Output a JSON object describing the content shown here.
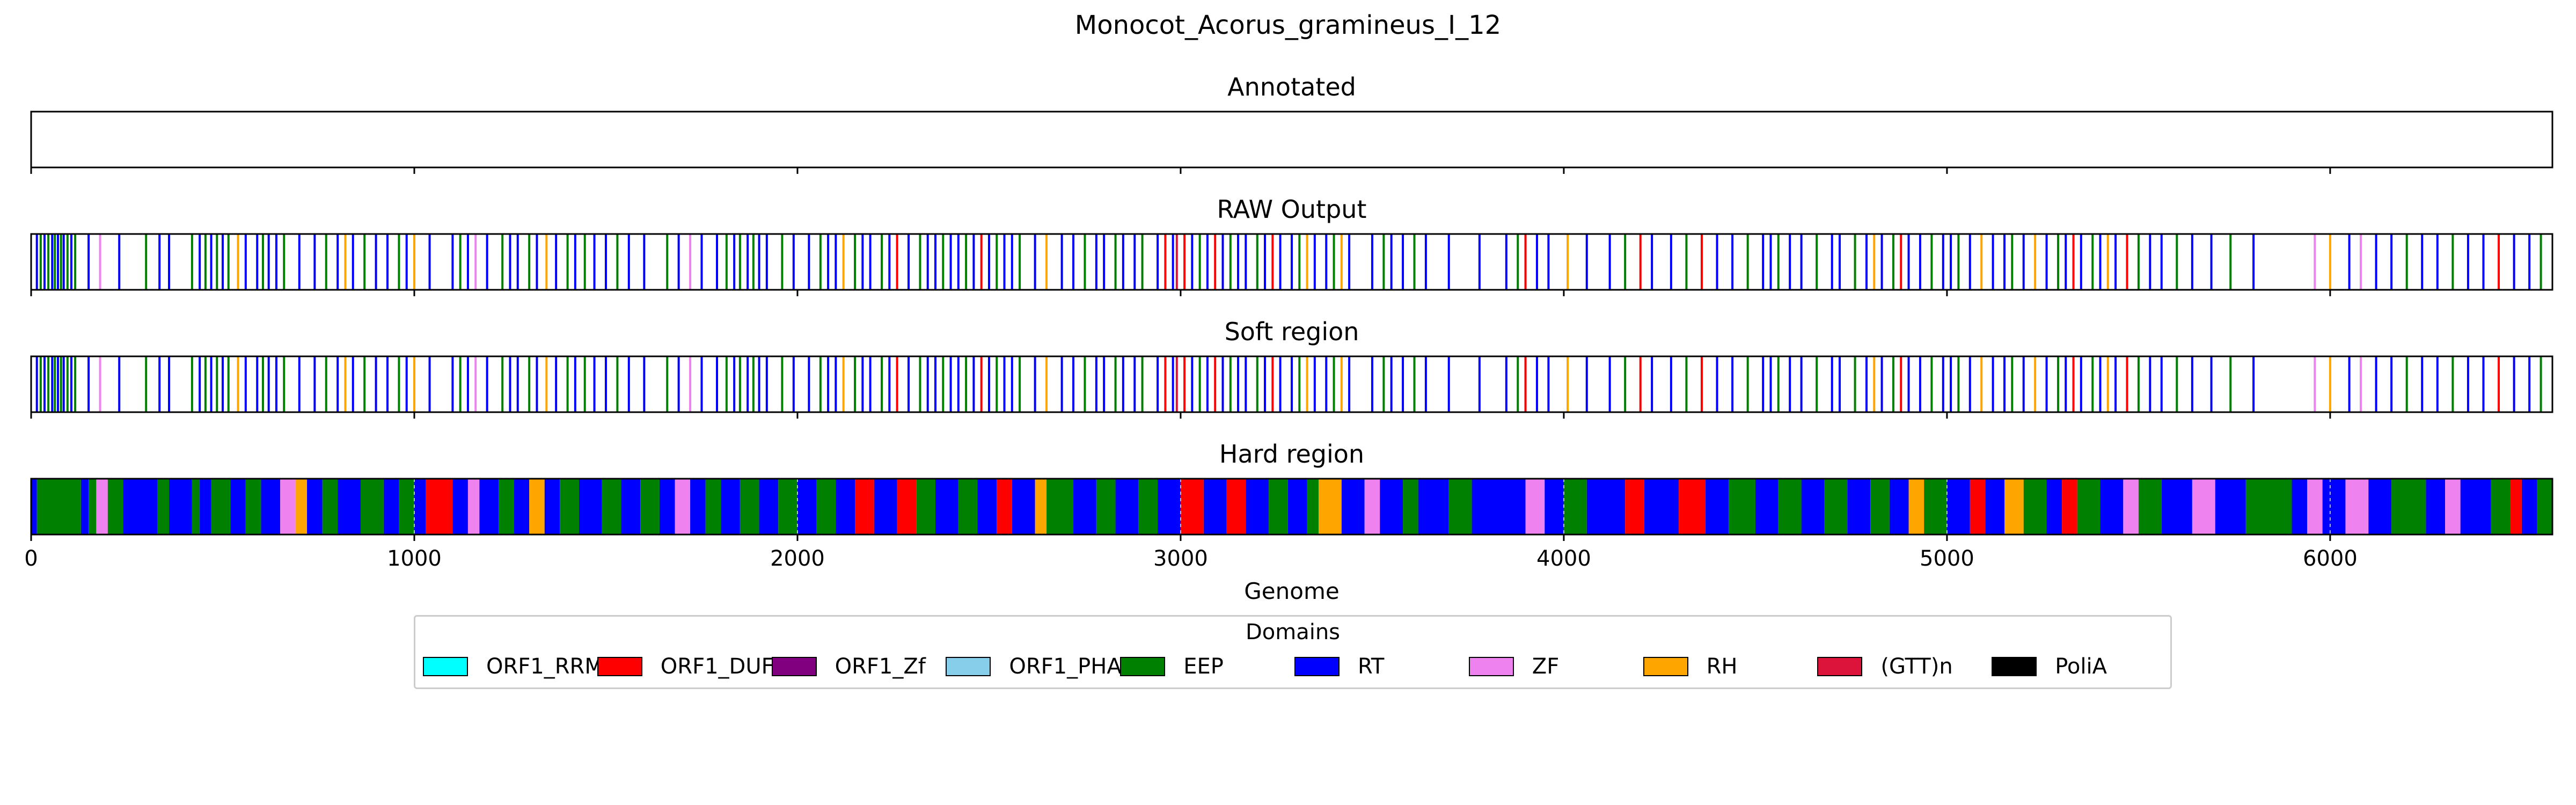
{
  "chart_data": {
    "type": "track",
    "title": "Monocot_Acorus_gramineus_I_12",
    "xlabel": "Genome",
    "xlim": [
      0,
      6580
    ],
    "xticks": [
      0,
      1000,
      2000,
      3000,
      4000,
      5000,
      6000
    ],
    "xtick_labels": [
      "0",
      "1000",
      "2000",
      "3000",
      "4000",
      "5000",
      "6000"
    ],
    "grid": false,
    "legend": {
      "title": "Domains",
      "placement": "lower-center",
      "entries": [
        {
          "label": "ORF1_RRM",
          "color": "#00ffff"
        },
        {
          "label": "ORF1_DUF",
          "color": "#ff0000"
        },
        {
          "label": "ORF1_Zf",
          "color": "#800080"
        },
        {
          "label": "ORF1_PHA",
          "color": "#87ceeb"
        },
        {
          "label": "EEP",
          "color": "#008000"
        },
        {
          "label": "RT",
          "color": "#0000ff"
        },
        {
          "label": "ZF",
          "color": "#ee82ee"
        },
        {
          "label": "RH",
          "color": "#ffa500"
        },
        {
          "label": "(GTT)n",
          "color": "#dc143c"
        },
        {
          "label": "PoliA",
          "color": "#000000"
        }
      ]
    },
    "panels": [
      {
        "title": "Annotated",
        "kind": "empty"
      },
      {
        "title": "RAW Output",
        "kind": "lines"
      },
      {
        "title": "Soft region",
        "kind": "lines"
      },
      {
        "title": "Hard region",
        "kind": "blocks"
      }
    ],
    "lines": [
      [
        15,
        "RT"
      ],
      [
        25,
        "EEP"
      ],
      [
        35,
        "RT"
      ],
      [
        45,
        "EEP"
      ],
      [
        55,
        "RT"
      ],
      [
        62,
        "EEP"
      ],
      [
        70,
        "RT"
      ],
      [
        78,
        "EEP"
      ],
      [
        85,
        "RT"
      ],
      [
        95,
        "EEP"
      ],
      [
        105,
        "RT"
      ],
      [
        115,
        "EEP"
      ],
      [
        150,
        "RT"
      ],
      [
        180,
        "ZF"
      ],
      [
        230,
        "RT"
      ],
      [
        300,
        "EEP"
      ],
      [
        335,
        "RT"
      ],
      [
        360,
        "RT"
      ],
      [
        420,
        "EEP"
      ],
      [
        440,
        "RT"
      ],
      [
        455,
        "EEP"
      ],
      [
        470,
        "RT"
      ],
      [
        485,
        "EEP"
      ],
      [
        500,
        "RT"
      ],
      [
        515,
        "EEP"
      ],
      [
        540,
        "RH"
      ],
      [
        560,
        "RT"
      ],
      [
        590,
        "RT"
      ],
      [
        605,
        "EEP"
      ],
      [
        620,
        "RT"
      ],
      [
        640,
        "RT"
      ],
      [
        660,
        "EEP"
      ],
      [
        700,
        "RT"
      ],
      [
        740,
        "RT"
      ],
      [
        770,
        "EEP"
      ],
      [
        800,
        "RT"
      ],
      [
        820,
        "RH"
      ],
      [
        840,
        "RT"
      ],
      [
        870,
        "EEP"
      ],
      [
        900,
        "RT"
      ],
      [
        930,
        "RT"
      ],
      [
        960,
        "EEP"
      ],
      [
        980,
        "RT"
      ],
      [
        1000,
        "RH"
      ],
      [
        1040,
        "RT"
      ],
      [
        1100,
        "RT"
      ],
      [
        1120,
        "EEP"
      ],
      [
        1140,
        "RT"
      ],
      [
        1160,
        "ZF"
      ],
      [
        1190,
        "RT"
      ],
      [
        1230,
        "EEP"
      ],
      [
        1250,
        "RT"
      ],
      [
        1270,
        "RT"
      ],
      [
        1300,
        "EEP"
      ],
      [
        1320,
        "RT"
      ],
      [
        1345,
        "RH"
      ],
      [
        1370,
        "RT"
      ],
      [
        1400,
        "EEP"
      ],
      [
        1420,
        "RT"
      ],
      [
        1445,
        "EEP"
      ],
      [
        1470,
        "RT"
      ],
      [
        1500,
        "RT"
      ],
      [
        1530,
        "EEP"
      ],
      [
        1560,
        "RT"
      ],
      [
        1600,
        "RT"
      ],
      [
        1660,
        "EEP"
      ],
      [
        1690,
        "RT"
      ],
      [
        1720,
        "ZF"
      ],
      [
        1750,
        "RT"
      ],
      [
        1790,
        "RT"
      ],
      [
        1815,
        "EEP"
      ],
      [
        1835,
        "RT"
      ],
      [
        1850,
        "EEP"
      ],
      [
        1870,
        "RT"
      ],
      [
        1885,
        "EEP"
      ],
      [
        1900,
        "RT"
      ],
      [
        1920,
        "RT"
      ],
      [
        1960,
        "EEP"
      ],
      [
        1990,
        "RT"
      ],
      [
        2030,
        "RT"
      ],
      [
        2060,
        "EEP"
      ],
      [
        2080,
        "RT"
      ],
      [
        2100,
        "RT"
      ],
      [
        2120,
        "RH"
      ],
      [
        2150,
        "EEP"
      ],
      [
        2170,
        "RT"
      ],
      [
        2190,
        "RT"
      ],
      [
        2220,
        "EEP"
      ],
      [
        2240,
        "RT"
      ],
      [
        2260,
        "ORF1_DUF"
      ],
      [
        2290,
        "RT"
      ],
      [
        2320,
        "EEP"
      ],
      [
        2340,
        "RT"
      ],
      [
        2360,
        "RT"
      ],
      [
        2380,
        "EEP"
      ],
      [
        2400,
        "RT"
      ],
      [
        2420,
        "RT"
      ],
      [
        2440,
        "EEP"
      ],
      [
        2460,
        "RT"
      ],
      [
        2480,
        "ORF1_DUF"
      ],
      [
        2500,
        "RT"
      ],
      [
        2520,
        "EEP"
      ],
      [
        2540,
        "RT"
      ],
      [
        2560,
        "RT"
      ],
      [
        2580,
        "EEP"
      ],
      [
        2620,
        "RT"
      ],
      [
        2650,
        "RH"
      ],
      [
        2690,
        "RT"
      ],
      [
        2720,
        "RT"
      ],
      [
        2750,
        "EEP"
      ],
      [
        2780,
        "RT"
      ],
      [
        2800,
        "RT"
      ],
      [
        2830,
        "EEP"
      ],
      [
        2850,
        "RT"
      ],
      [
        2880,
        "RT"
      ],
      [
        2900,
        "EEP"
      ],
      [
        2940,
        "RT"
      ],
      [
        2960,
        "ORF1_DUF"
      ],
      [
        2980,
        "RT"
      ],
      [
        2990,
        "(GTT)n"
      ],
      [
        3010,
        "ORF1_DUF"
      ],
      [
        3030,
        "RT"
      ],
      [
        3050,
        "EEP"
      ],
      [
        3070,
        "RT"
      ],
      [
        3090,
        "ORF1_DUF"
      ],
      [
        3110,
        "RT"
      ],
      [
        3130,
        "EEP"
      ],
      [
        3150,
        "RT"
      ],
      [
        3170,
        "RT"
      ],
      [
        3200,
        "EEP"
      ],
      [
        3220,
        "RT"
      ],
      [
        3240,
        "ORF1_DUF"
      ],
      [
        3260,
        "RT"
      ],
      [
        3290,
        "RT"
      ],
      [
        3310,
        "EEP"
      ],
      [
        3330,
        "RH"
      ],
      [
        3350,
        "RT"
      ],
      [
        3380,
        "RT"
      ],
      [
        3400,
        "EEP"
      ],
      [
        3420,
        "RH"
      ],
      [
        3440,
        "RT"
      ],
      [
        3500,
        "RT"
      ],
      [
        3530,
        "EEP"
      ],
      [
        3550,
        "RT"
      ],
      [
        3580,
        "RT"
      ],
      [
        3610,
        "EEP"
      ],
      [
        3640,
        "RT"
      ],
      [
        3700,
        "RT"
      ],
      [
        3780,
        "RT"
      ],
      [
        3850,
        "RT"
      ],
      [
        3880,
        "EEP"
      ],
      [
        3900,
        "ORF1_DUF"
      ],
      [
        3930,
        "RT"
      ],
      [
        3960,
        "RT"
      ],
      [
        4010,
        "RH"
      ],
      [
        4060,
        "RT"
      ],
      [
        4120,
        "RT"
      ],
      [
        4160,
        "EEP"
      ],
      [
        4200,
        "ORF1_DUF"
      ],
      [
        4230,
        "RT"
      ],
      [
        4280,
        "RT"
      ],
      [
        4320,
        "EEP"
      ],
      [
        4360,
        "ORF1_DUF"
      ],
      [
        4400,
        "RT"
      ],
      [
        4440,
        "RT"
      ],
      [
        4480,
        "EEP"
      ],
      [
        4520,
        "RT"
      ],
      [
        4540,
        "RT"
      ],
      [
        4560,
        "EEP"
      ],
      [
        4590,
        "RT"
      ],
      [
        4620,
        "RT"
      ],
      [
        4660,
        "EEP"
      ],
      [
        4700,
        "RT"
      ],
      [
        4720,
        "RT"
      ],
      [
        4760,
        "EEP"
      ],
      [
        4790,
        "RT"
      ],
      [
        4810,
        "RH"
      ],
      [
        4830,
        "RT"
      ],
      [
        4860,
        "EEP"
      ],
      [
        4880,
        "ORF1_DUF"
      ],
      [
        4900,
        "RT"
      ],
      [
        4930,
        "RT"
      ],
      [
        4960,
        "EEP"
      ],
      [
        4990,
        "RT"
      ],
      [
        5010,
        "RT"
      ],
      [
        5030,
        "EEP"
      ],
      [
        5060,
        "RT"
      ],
      [
        5090,
        "RH"
      ],
      [
        5120,
        "RT"
      ],
      [
        5150,
        "RT"
      ],
      [
        5170,
        "EEP"
      ],
      [
        5200,
        "RT"
      ],
      [
        5230,
        "RH"
      ],
      [
        5260,
        "RT"
      ],
      [
        5290,
        "EEP"
      ],
      [
        5310,
        "RT"
      ],
      [
        5330,
        "ORF1_DUF"
      ],
      [
        5350,
        "RT"
      ],
      [
        5380,
        "EEP"
      ],
      [
        5400,
        "RT"
      ],
      [
        5420,
        "RH"
      ],
      [
        5440,
        "RT"
      ],
      [
        5470,
        "ORF1_DUF"
      ],
      [
        5500,
        "EEP"
      ],
      [
        5530,
        "RT"
      ],
      [
        5560,
        "RT"
      ],
      [
        5600,
        "EEP"
      ],
      [
        5640,
        "RT"
      ],
      [
        5690,
        "RT"
      ],
      [
        5740,
        "EEP"
      ],
      [
        5800,
        "RT"
      ],
      [
        5960,
        "ZF"
      ],
      [
        6000,
        "RH"
      ],
      [
        6050,
        "RT"
      ],
      [
        6080,
        "ZF"
      ],
      [
        6120,
        "RT"
      ],
      [
        6160,
        "RT"
      ],
      [
        6200,
        "EEP"
      ],
      [
        6240,
        "RT"
      ],
      [
        6280,
        "RT"
      ],
      [
        6320,
        "EEP"
      ],
      [
        6360,
        "RT"
      ],
      [
        6400,
        "RT"
      ],
      [
        6440,
        "ORF1_DUF"
      ],
      [
        6480,
        "RT"
      ],
      [
        6520,
        "RT"
      ],
      [
        6550,
        "EEP"
      ]
    ],
    "blocks": [
      [
        0,
        15,
        "RT"
      ],
      [
        15,
        130,
        "EEP"
      ],
      [
        130,
        150,
        "RT"
      ],
      [
        150,
        170,
        "EEP"
      ],
      [
        170,
        200,
        "ZF"
      ],
      [
        200,
        240,
        "EEP"
      ],
      [
        240,
        330,
        "RT"
      ],
      [
        330,
        360,
        "EEP"
      ],
      [
        360,
        420,
        "RT"
      ],
      [
        420,
        440,
        "EEP"
      ],
      [
        440,
        470,
        "RT"
      ],
      [
        470,
        520,
        "EEP"
      ],
      [
        520,
        560,
        "RT"
      ],
      [
        560,
        600,
        "EEP"
      ],
      [
        600,
        650,
        "RT"
      ],
      [
        650,
        690,
        "ZF"
      ],
      [
        690,
        720,
        "RH"
      ],
      [
        720,
        760,
        "RT"
      ],
      [
        760,
        800,
        "EEP"
      ],
      [
        800,
        860,
        "RT"
      ],
      [
        860,
        920,
        "EEP"
      ],
      [
        920,
        960,
        "RT"
      ],
      [
        960,
        1000,
        "EEP"
      ],
      [
        1000,
        1030,
        "RT"
      ],
      [
        1030,
        1100,
        "ORF1_DUF"
      ],
      [
        1100,
        1140,
        "RT"
      ],
      [
        1140,
        1170,
        "ZF"
      ],
      [
        1170,
        1220,
        "RT"
      ],
      [
        1220,
        1260,
        "EEP"
      ],
      [
        1260,
        1300,
        "RT"
      ],
      [
        1300,
        1340,
        "RH"
      ],
      [
        1340,
        1380,
        "RT"
      ],
      [
        1380,
        1430,
        "EEP"
      ],
      [
        1430,
        1490,
        "RT"
      ],
      [
        1490,
        1540,
        "EEP"
      ],
      [
        1540,
        1590,
        "RT"
      ],
      [
        1590,
        1640,
        "EEP"
      ],
      [
        1640,
        1680,
        "RT"
      ],
      [
        1680,
        1720,
        "ZF"
      ],
      [
        1720,
        1760,
        "RT"
      ],
      [
        1760,
        1800,
        "EEP"
      ],
      [
        1800,
        1850,
        "RT"
      ],
      [
        1850,
        1900,
        "EEP"
      ],
      [
        1900,
        1950,
        "RT"
      ],
      [
        1950,
        2000,
        "EEP"
      ],
      [
        2000,
        2050,
        "RT"
      ],
      [
        2050,
        2100,
        "EEP"
      ],
      [
        2100,
        2150,
        "RT"
      ],
      [
        2150,
        2200,
        "ORF1_DUF"
      ],
      [
        2200,
        2260,
        "RT"
      ],
      [
        2260,
        2310,
        "ORF1_DUF"
      ],
      [
        2310,
        2360,
        "EEP"
      ],
      [
        2360,
        2420,
        "RT"
      ],
      [
        2420,
        2470,
        "EEP"
      ],
      [
        2470,
        2520,
        "RT"
      ],
      [
        2520,
        2560,
        "ORF1_DUF"
      ],
      [
        2560,
        2620,
        "RT"
      ],
      [
        2620,
        2650,
        "RH"
      ],
      [
        2650,
        2720,
        "EEP"
      ],
      [
        2720,
        2780,
        "RT"
      ],
      [
        2780,
        2830,
        "EEP"
      ],
      [
        2830,
        2890,
        "RT"
      ],
      [
        2890,
        2940,
        "EEP"
      ],
      [
        2940,
        3000,
        "RT"
      ],
      [
        3000,
        3060,
        "ORF1_DUF"
      ],
      [
        3060,
        3120,
        "RT"
      ],
      [
        3120,
        3170,
        "ORF1_DUF"
      ],
      [
        3170,
        3230,
        "RT"
      ],
      [
        3230,
        3280,
        "EEP"
      ],
      [
        3280,
        3330,
        "RT"
      ],
      [
        3330,
        3360,
        "EEP"
      ],
      [
        3360,
        3420,
        "RH"
      ],
      [
        3420,
        3480,
        "RT"
      ],
      [
        3480,
        3520,
        "ZF"
      ],
      [
        3520,
        3580,
        "RT"
      ],
      [
        3580,
        3620,
        "EEP"
      ],
      [
        3620,
        3700,
        "RT"
      ],
      [
        3700,
        3760,
        "EEP"
      ],
      [
        3760,
        3900,
        "RT"
      ],
      [
        3900,
        3950,
        "ZF"
      ],
      [
        3950,
        4000,
        "RT"
      ],
      [
        4000,
        4060,
        "EEP"
      ],
      [
        4060,
        4160,
        "RT"
      ],
      [
        4160,
        4210,
        "ORF1_DUF"
      ],
      [
        4210,
        4300,
        "RT"
      ],
      [
        4300,
        4370,
        "ORF1_DUF"
      ],
      [
        4370,
        4430,
        "RT"
      ],
      [
        4430,
        4500,
        "EEP"
      ],
      [
        4500,
        4560,
        "RT"
      ],
      [
        4560,
        4620,
        "EEP"
      ],
      [
        4620,
        4680,
        "RT"
      ],
      [
        4680,
        4740,
        "EEP"
      ],
      [
        4740,
        4800,
        "RT"
      ],
      [
        4800,
        4850,
        "EEP"
      ],
      [
        4850,
        4900,
        "RT"
      ],
      [
        4900,
        4940,
        "RH"
      ],
      [
        4940,
        5000,
        "EEP"
      ],
      [
        5000,
        5060,
        "RT"
      ],
      [
        5060,
        5100,
        "ORF1_DUF"
      ],
      [
        5100,
        5150,
        "RT"
      ],
      [
        5150,
        5200,
        "RH"
      ],
      [
        5200,
        5260,
        "EEP"
      ],
      [
        5260,
        5300,
        "RT"
      ],
      [
        5300,
        5340,
        "ORF1_DUF"
      ],
      [
        5340,
        5400,
        "EEP"
      ],
      [
        5400,
        5460,
        "RT"
      ],
      [
        5460,
        5500,
        "ZF"
      ],
      [
        5500,
        5560,
        "EEP"
      ],
      [
        5560,
        5640,
        "RT"
      ],
      [
        5640,
        5700,
        "ZF"
      ],
      [
        5700,
        5780,
        "RT"
      ],
      [
        5780,
        5900,
        "EEP"
      ],
      [
        5900,
        5940,
        "RT"
      ],
      [
        5940,
        5980,
        "ZF"
      ],
      [
        5980,
        6040,
        "RT"
      ],
      [
        6040,
        6100,
        "ZF"
      ],
      [
        6100,
        6160,
        "RT"
      ],
      [
        6160,
        6250,
        "EEP"
      ],
      [
        6250,
        6300,
        "RT"
      ],
      [
        6300,
        6340,
        "ZF"
      ],
      [
        6340,
        6420,
        "RT"
      ],
      [
        6420,
        6470,
        "EEP"
      ],
      [
        6470,
        6500,
        "ORF1_DUF"
      ],
      [
        6500,
        6540,
        "RT"
      ],
      [
        6540,
        6580,
        "EEP"
      ]
    ]
  }
}
